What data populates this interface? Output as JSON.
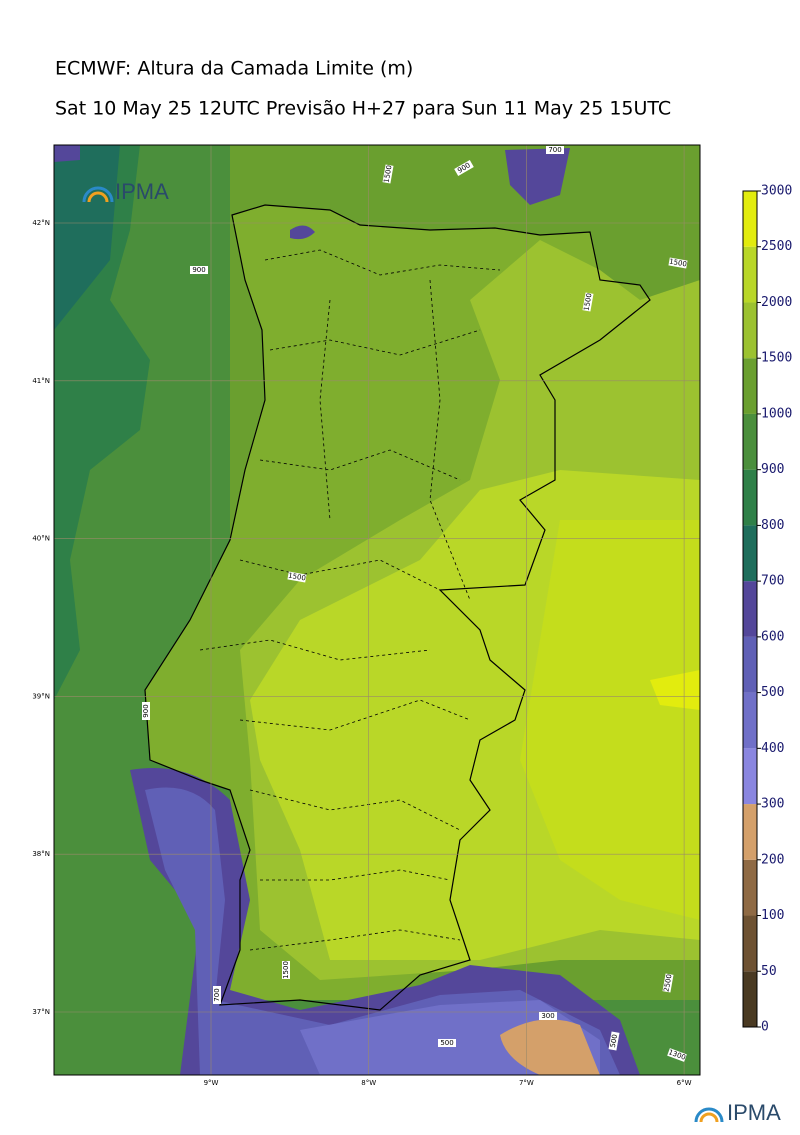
{
  "title": "ECMWF: Altura da Camada Limite (m)",
  "subtitle": "Sat 10 May 25 12UTC Previsão H+27 para Sun 11 May 25 15UTC",
  "logo_top": "IPMA",
  "logo_bottom": "IPMA",
  "lat_ticks": [
    {
      "value": 42,
      "label": "42°N"
    },
    {
      "value": 41,
      "label": "41°N"
    },
    {
      "value": 40,
      "label": "40°N"
    },
    {
      "value": 39,
      "label": "39°N"
    },
    {
      "value": 38,
      "label": "38°N"
    },
    {
      "value": 37,
      "label": "37°N"
    }
  ],
  "lon_ticks": [
    {
      "value": -9,
      "label": "9°W"
    },
    {
      "value": -8,
      "label": "8°W"
    },
    {
      "value": -7,
      "label": "7°W"
    },
    {
      "value": -6,
      "label": "6°W"
    }
  ],
  "colorbar": {
    "ticks": [
      0,
      50,
      100,
      200,
      300,
      400,
      500,
      600,
      700,
      800,
      900,
      1000,
      1500,
      2000,
      2500,
      3000
    ],
    "colors": [
      "#4a3a22",
      "#6e5232",
      "#8f6a44",
      "#d4a06a",
      "#8a86e0",
      "#7070c8",
      "#6060b6",
      "#54479a",
      "#1f6e5c",
      "#2f8048",
      "#4b8f3c",
      "#6a9f2f",
      "#9cc230",
      "#b9d728",
      "#e2ec0e"
    ]
  },
  "contour_labels": [
    "700",
    "1500",
    "900",
    "900",
    "1500",
    "1500",
    "1500",
    "900",
    "1500",
    "2500",
    "300",
    "500",
    "1300",
    "500",
    "700"
  ]
}
